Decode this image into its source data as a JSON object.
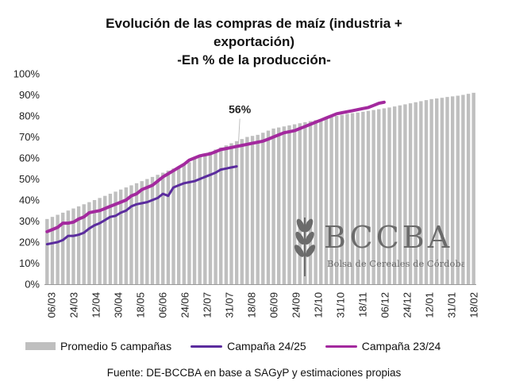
{
  "chart_data": {
    "type": "bar+line",
    "title_lines": [
      "Evolución de las compras de maíz (industria +",
      "exportación)",
      "-En % de la producción-"
    ],
    "ylim": [
      0,
      100
    ],
    "yticks": [
      "0%",
      "10%",
      "20%",
      "30%",
      "40%",
      "50%",
      "60%",
      "70%",
      "80%",
      "90%",
      "100%"
    ],
    "x_ticks": [
      "06/03",
      "24/03",
      "12/04",
      "30/04",
      "18/05",
      "06/06",
      "24/06",
      "12/07",
      "31/07",
      "18/08",
      "06/09",
      "24/09",
      "12/10",
      "31/10",
      "18/11",
      "06/12",
      "24/12",
      "12/01",
      "31/01",
      "18/02"
    ],
    "series": [
      {
        "name": "Promedio 5 campañas",
        "kind": "bar",
        "color": "#bfbfbf",
        "values": [
          31,
          32,
          33,
          34,
          35,
          36,
          37,
          38,
          39,
          40,
          41,
          42,
          43,
          44,
          45,
          46,
          47,
          48,
          49,
          50,
          51,
          52,
          53,
          54,
          55,
          56,
          57,
          58,
          60,
          61,
          62,
          63,
          64,
          65,
          66,
          67,
          68,
          69,
          70,
          70.5,
          71,
          72,
          73,
          74,
          74.5,
          75,
          75.5,
          76,
          76.5,
          77,
          77.5,
          78,
          78.5,
          79,
          79.5,
          80,
          80.5,
          81,
          81.3,
          81.6,
          82,
          82.4,
          82.8,
          83.2,
          83.6,
          84,
          84.5,
          85,
          85.5,
          86,
          86.5,
          87,
          87.5,
          88,
          88.3,
          88.6,
          89,
          89.3,
          89.6,
          90,
          90.5,
          91
        ]
      },
      {
        "name": "Campaña 24/25",
        "kind": "line",
        "color": "#5b2c9e",
        "values": [
          19,
          19.5,
          20,
          21,
          23,
          23,
          23.5,
          24.5,
          26.5,
          28,
          29,
          30.5,
          32,
          32.5,
          34,
          35,
          37,
          38,
          38.5,
          39,
          40,
          41,
          43,
          42,
          46,
          47,
          48,
          48.5,
          49,
          50,
          51,
          52,
          53,
          54.5,
          55,
          55.5,
          56
        ]
      },
      {
        "name": "Campaña 23/24",
        "kind": "line",
        "color": "#a3299e",
        "values": [
          25,
          26,
          27,
          29,
          29,
          29.5,
          31,
          32,
          34,
          34.5,
          35,
          36,
          37,
          38,
          39,
          40,
          42,
          43,
          45,
          46,
          47,
          49,
          51,
          52.5,
          54,
          55.5,
          57,
          59,
          60,
          61,
          61.5,
          62,
          63,
          64,
          64.5,
          65,
          65.5,
          66,
          66.5,
          67,
          67.5,
          68,
          69,
          70,
          71,
          72,
          72.5,
          73,
          74,
          75,
          76,
          77,
          78,
          79,
          80,
          81,
          81.5,
          82,
          82.5,
          83,
          83.5,
          84,
          85,
          86,
          86.5
        ]
      }
    ],
    "annotation": {
      "text": "56%",
      "series": "Campaña 24/25"
    }
  },
  "legend": {
    "bar": "Promedio 5 campañas",
    "line1": "Campaña 24/25",
    "line2": "Campaña 23/24"
  },
  "source": "Fuente: DE-BCCBA en base a SAGyP y estimaciones propias",
  "watermark": {
    "logo_text": "BCCBA",
    "subtitle": "Bolsa de Cereales de Córdoba"
  }
}
